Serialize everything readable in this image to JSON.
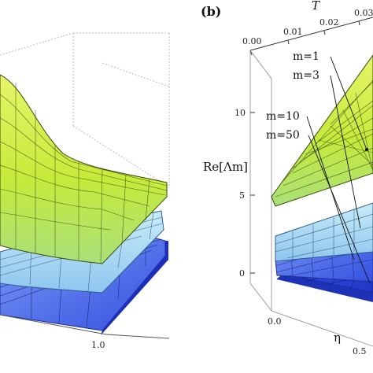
{
  "chart_data": [
    {
      "type": "surface",
      "panel": "a",
      "x_ticks": [
        "1.0"
      ],
      "series": [
        {
          "name": "",
          "color": "#c9ef3a"
        },
        {
          "name": "",
          "color": "#b8e6f4"
        },
        {
          "name": "",
          "color": "#4060e8"
        }
      ]
    },
    {
      "type": "surface",
      "panel_label": "(b)",
      "zlabel": "Re[Λm]",
      "xlabel": "η",
      "ylabel": "T",
      "z_ticks": [
        "0",
        "5",
        "10"
      ],
      "eta_ticks": [
        "0.0",
        "0.5"
      ],
      "T_ticks": [
        "0.00",
        "0.01",
        "0.02",
        "0.03"
      ],
      "series": [
        {
          "name": "m=1",
          "color": "#c9ef3a"
        },
        {
          "name": "m=3",
          "color": "#b8e6f4"
        },
        {
          "name": "m=10",
          "color": "#5a7ae8"
        },
        {
          "name": "m=50",
          "color": "#2a44d8"
        }
      ]
    }
  ]
}
